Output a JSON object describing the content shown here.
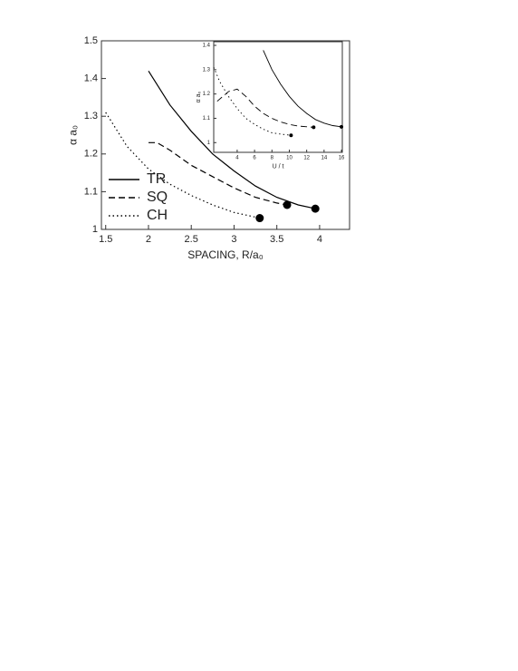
{
  "chart_data": [
    {
      "type": "line",
      "xlabel": "SPACING, R/a₀",
      "ylabel": "α a₀",
      "xlim": [
        1.45,
        4.35
      ],
      "ylim": [
        1.0,
        1.5
      ],
      "xticks": [
        1.5,
        2.0,
        2.5,
        3.0,
        3.5,
        4.0
      ],
      "yticks": [
        1.0,
        1.1,
        1.2,
        1.3,
        1.4,
        1.5
      ],
      "endpoint_marker": true,
      "legend": "lower left",
      "series": [
        {
          "name": "TR",
          "color": "#000000",
          "dash": "solid",
          "x": [
            2.0,
            2.25,
            2.5,
            2.75,
            3.0,
            3.25,
            3.5,
            3.75,
            3.95
          ],
          "values": [
            1.42,
            1.33,
            1.26,
            1.2,
            1.155,
            1.115,
            1.085,
            1.065,
            1.055
          ]
        },
        {
          "name": "SQ",
          "color": "#000000",
          "dash": "dashed",
          "x": [
            2.0,
            2.1,
            2.25,
            2.5,
            2.75,
            3.0,
            3.25,
            3.5,
            3.62
          ],
          "values": [
            1.23,
            1.23,
            1.21,
            1.17,
            1.14,
            1.11,
            1.085,
            1.07,
            1.065
          ]
        },
        {
          "name": "CH",
          "color": "#000000",
          "dash": "dotted",
          "x": [
            1.5,
            1.75,
            2.0,
            2.25,
            2.5,
            2.75,
            3.0,
            3.2,
            3.3
          ],
          "values": [
            1.31,
            1.22,
            1.16,
            1.12,
            1.09,
            1.065,
            1.045,
            1.035,
            1.03
          ]
        }
      ]
    },
    {
      "type": "line",
      "xlabel": "U / t",
      "ylabel": "α a₀",
      "xlim": [
        1.3,
        16.1
      ],
      "ylim": [
        0.96,
        1.415
      ],
      "xticks": [
        4,
        6,
        8,
        10,
        12,
        14,
        16
      ],
      "yticks": [
        1.0,
        1.1,
        1.2,
        1.3,
        1.4
      ],
      "endpoint_marker": true,
      "series": [
        {
          "color": "#000000",
          "dash": "solid",
          "x": [
            7,
            8,
            9,
            10,
            11,
            12,
            13,
            14,
            15,
            16
          ],
          "values": [
            1.38,
            1.3,
            1.24,
            1.19,
            1.15,
            1.12,
            1.095,
            1.08,
            1.07,
            1.065
          ]
        },
        {
          "color": "#000000",
          "dash": "dashed",
          "x": [
            1.7,
            3,
            4,
            5,
            6,
            7,
            8,
            9,
            10,
            11,
            12.8
          ],
          "values": [
            1.17,
            1.21,
            1.22,
            1.19,
            1.15,
            1.12,
            1.1,
            1.085,
            1.075,
            1.068,
            1.063
          ]
        },
        {
          "color": "#000000",
          "dash": "dotted",
          "x": [
            1.3,
            2,
            3,
            4,
            5,
            6,
            7,
            8,
            9,
            10.2
          ],
          "values": [
            1.31,
            1.25,
            1.19,
            1.14,
            1.1,
            1.075,
            1.055,
            1.04,
            1.035,
            1.03
          ]
        }
      ]
    }
  ]
}
